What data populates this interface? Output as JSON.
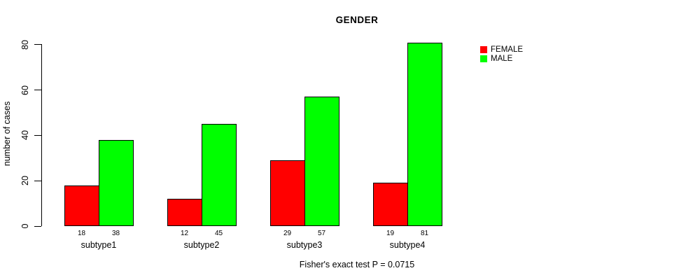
{
  "chart_data": {
    "type": "bar",
    "title": "GENDER",
    "xlabel": "",
    "ylabel": "number of cases",
    "categories": [
      "subtype1",
      "subtype2",
      "subtype3",
      "subtype4"
    ],
    "series": [
      {
        "name": "FEMALE",
        "color": "#FF0000",
        "values": [
          18,
          12,
          29,
          19
        ]
      },
      {
        "name": "MALE",
        "color": "#00FF00",
        "values": [
          38,
          45,
          57,
          81
        ]
      }
    ],
    "yticks": [
      0,
      20,
      40,
      60,
      80
    ],
    "ylim": [
      0,
      81
    ],
    "bar_value_labels_shown": true,
    "grid": false,
    "legend_position": "right",
    "annotation": "Fisher's exact test P = 0.0715"
  }
}
